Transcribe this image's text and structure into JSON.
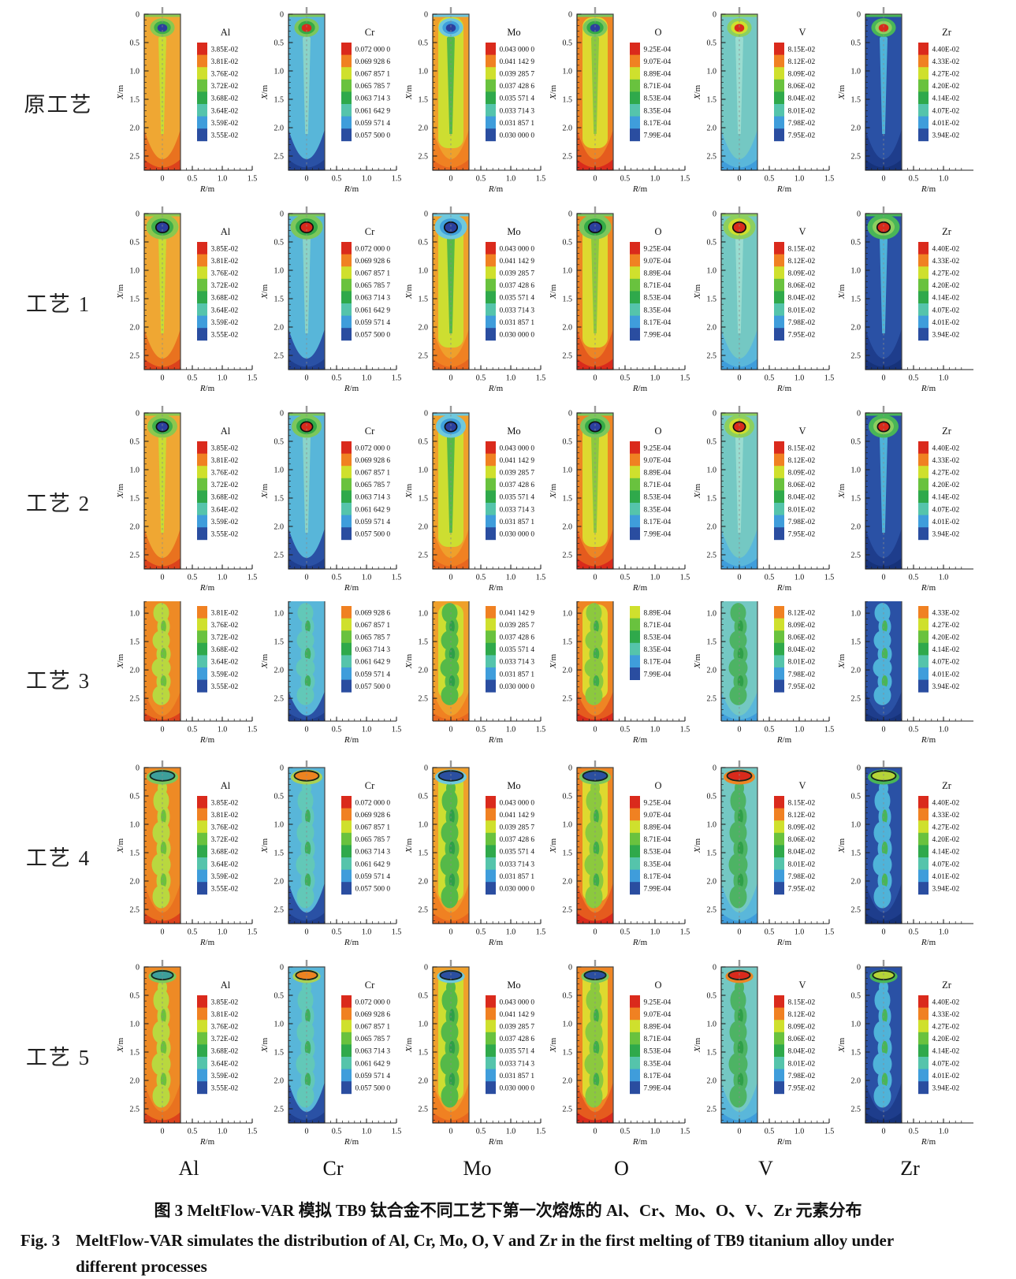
{
  "figure": {
    "caption_zh": "图 3    MeltFlow-VAR 模拟 TB9 钛合金不同工艺下第一次熔炼的 Al、Cr、Mo、O、V、Zr 元素分布",
    "caption_en_label": "Fig. 3",
    "caption_en_lines": [
      "MeltFlow-VAR simulates the distribution of Al, Cr, Mo, O, V and Zr in the first melting of TB9 titanium alloy under",
      "different processes"
    ]
  },
  "axes": {
    "x_label": "R/m",
    "y_label": "X/m",
    "y_tick_labels": [
      "0",
      "0.5",
      "1.0",
      "1.5",
      "2.0",
      "2.5"
    ],
    "y_tick_labels_cropped": [
      "1.0",
      "1.5",
      "2.0",
      "2.5"
    ]
  },
  "rows": [
    {
      "label": "原工艺",
      "variant": "round-small"
    },
    {
      "label": "工艺 1",
      "variant": "round"
    },
    {
      "label": "工艺 2",
      "variant": "round"
    },
    {
      "label": "工艺 3",
      "variant": "cropped"
    },
    {
      "label": "工艺 4",
      "variant": "flat"
    },
    {
      "label": "工艺 5",
      "variant": "flat-small"
    }
  ],
  "columns": [
    {
      "element": "Al",
      "legend": [
        "3.85E-02",
        "3.81E-02",
        "3.76E-02",
        "3.72E-02",
        "3.68E-02",
        "3.64E-02",
        "3.59E-02",
        "3.55E-02"
      ],
      "crop_skip": 1,
      "x_ticks": [
        "0",
        "0.5",
        "1.0",
        "1.5"
      ]
    },
    {
      "element": "Cr",
      "legend": [
        "0.072 000 0",
        "0.069 928 6",
        "0.067 857 1",
        "0.065 785 7",
        "0.063 714 3",
        "0.061 642 9",
        "0.059 571 4",
        "0.057 500 0"
      ],
      "crop_skip": 1,
      "x_ticks": [
        "0",
        "0.5",
        "1.0",
        "1.5"
      ]
    },
    {
      "element": "Mo",
      "legend": [
        "0.043 000 0",
        "0.041 142 9",
        "0.039 285 7",
        "0.037 428 6",
        "0.035 571 4",
        "0.033 714 3",
        "0.031 857 1",
        "0.030 000 0"
      ],
      "crop_skip": 1,
      "x_ticks": [
        "0",
        "0.5",
        "1.0",
        "1.5"
      ]
    },
    {
      "element": "O",
      "legend": [
        "9.25E-04",
        "9.07E-04",
        "8.89E-04",
        "8.71E-04",
        "8.53E-04",
        "8.35E-04",
        "8.17E-04",
        "7.99E-04"
      ],
      "crop_skip": 2,
      "x_ticks": [
        "0",
        "0.5",
        "1.0",
        "1.5"
      ]
    },
    {
      "element": "V",
      "legend": [
        "8.15E-02",
        "8.12E-02",
        "8.09E-02",
        "8.06E-02",
        "8.04E-02",
        "8.01E-02",
        "7.98E-02",
        "7.95E-02"
      ],
      "crop_skip": 1,
      "x_ticks": [
        "0",
        "0.5",
        "1.0",
        "1.5"
      ]
    },
    {
      "element": "Zr",
      "legend": [
        "4.40E-02",
        "4.33E-02",
        "4.27E-02",
        "4.20E-02",
        "4.14E-02",
        "4.07E-02",
        "4.01E-02",
        "3.94E-02"
      ],
      "crop_skip": 1,
      "x_ticks": [
        "0",
        "0.5",
        "1.0"
      ]
    }
  ],
  "legend_colors": [
    "#da2a1c",
    "#f08122",
    "#cfe02d",
    "#69c23e",
    "#2fa94b",
    "#55c4ab",
    "#3f9ddb",
    "#2a4da0"
  ],
  "styles": {
    "Al": {
      "body": "#efa733",
      "bodyFlat": "#ee8a25",
      "bodyInner": null,
      "plumeThin": "#c9dd33",
      "plumeWide": "#b9d83f",
      "plumeDot": "#6cc13d",
      "ring": "#8cc84e",
      "ring2": "#3fae4a",
      "blob": "#2b3f9e",
      "blobFlat": "#3d9f9a",
      "ringFlat": "#7cc75c",
      "bottom": "#e9721f",
      "bottom2": "#dc421c"
    },
    "Cr": {
      "body": "#58b6d9",
      "bodyInner": null,
      "plumeThin": "#8ad3c8",
      "plumeWide": "#62c8b8",
      "plumeDot": "#3fae5c",
      "ring": "#7cc75c",
      "ring2": "#35aa47",
      "blob": "#d92a1c",
      "blobFlat": "#ec8320",
      "ringFlat": "#a9d153",
      "bottom": "#2a51a5",
      "bottom2": "#1f3f8f"
    },
    "Mo": {
      "body": "#efa02b",
      "bodyInner": "#cdde31",
      "plumeThin": "#55b948",
      "plumeWide": "#55b948",
      "plumeDot": "#2f9f49",
      "ring": "#6ec8dd",
      "ring2": "#3f9fdb",
      "blob": "#2b3f9e",
      "blobFlat": "#2b4fa0",
      "ringFlat": "#6ec8dd",
      "bottom": "#f08122",
      "bottom2": "#e8671f"
    },
    "O": {
      "body": "#ee8524",
      "bodyInner": "#ded92f",
      "plumeThin": "#8cc93e",
      "plumeWide": "#8cc93e",
      "plumeDot": "#3fae4a",
      "ring": "#7cc75c",
      "ring2": "#35aa47",
      "blob": "#2b3f9e",
      "blobFlat": "#2b4fa0",
      "ringFlat": "#7cc75c",
      "bottom": "#e55b1e",
      "bottom2": "#d92a1c"
    },
    "V": {
      "body": "#74c8c3",
      "bodyInner": null,
      "plumeThin": "#9adcd0",
      "plumeWide": "#4db364",
      "plumeDot": "#2f9f49",
      "ring": "#8ccf5f",
      "ring2": "#cfe02d",
      "blob": "#d92a1c",
      "blobFlat": "#d92a1c",
      "ringFlat": "#ee8524",
      "bottom": "#5ab7da",
      "bottom2": "#3f9ddb"
    },
    "Zr": {
      "body": "#2a51a5",
      "bodyInner": null,
      "plumeThin": "#4fb3d9",
      "plumeWide": "#4fb3d9",
      "plumeDot": "#49b657",
      "ring": "#49b657",
      "ring2": "#8ccf5f",
      "blob": "#d92a1c",
      "blobFlat": "#b5d438",
      "ringFlat": "#49b657",
      "bottom": "#1e3d8c",
      "bottom2": "#16327a"
    }
  },
  "chart_data": [
    {
      "type": "heatmap",
      "element": "Al",
      "title": "Al",
      "xlabel": "R/m",
      "ylabel": "X/m",
      "x_ticks": [
        0,
        0.5,
        1.0,
        1.5
      ],
      "y_ticks": [
        0,
        0.5,
        1.0,
        1.5,
        2.0,
        2.5
      ],
      "legend_levels": [
        "3.85E-02",
        "3.81E-02",
        "3.76E-02",
        "3.72E-02",
        "3.68E-02",
        "3.64E-02",
        "3.59E-02",
        "3.55E-02"
      ],
      "processes": [
        "原工艺",
        "工艺 1",
        "工艺 2",
        "工艺 3",
        "工艺 4",
        "工艺 5"
      ]
    },
    {
      "type": "heatmap",
      "element": "Cr",
      "title": "Cr",
      "xlabel": "R/m",
      "ylabel": "X/m",
      "x_ticks": [
        0,
        0.5,
        1.0,
        1.5
      ],
      "y_ticks": [
        0,
        0.5,
        1.0,
        1.5,
        2.0,
        2.5
      ],
      "legend_levels": [
        "0.072 000 0",
        "0.069 928 6",
        "0.067 857 1",
        "0.065 785 7",
        "0.063 714 3",
        "0.061 642 9",
        "0.059 571 4",
        "0.057 500 0"
      ],
      "processes": [
        "原工艺",
        "工艺 1",
        "工艺 2",
        "工艺 3",
        "工艺 4",
        "工艺 5"
      ]
    },
    {
      "type": "heatmap",
      "element": "Mo",
      "title": "Mo",
      "xlabel": "R/m",
      "ylabel": "X/m",
      "x_ticks": [
        0,
        0.5,
        1.0,
        1.5
      ],
      "y_ticks": [
        0,
        0.5,
        1.0,
        1.5,
        2.0,
        2.5
      ],
      "legend_levels": [
        "0.043 000 0",
        "0.041 142 9",
        "0.039 285 7",
        "0.037 428 6",
        "0.035 571 4",
        "0.033 714 3",
        "0.031 857 1",
        "0.030 000 0"
      ],
      "processes": [
        "原工艺",
        "工艺 1",
        "工艺 2",
        "工艺 3",
        "工艺 4",
        "工艺 5"
      ]
    },
    {
      "type": "heatmap",
      "element": "O",
      "title": "O",
      "xlabel": "R/m",
      "ylabel": "X/m",
      "x_ticks": [
        0,
        0.5,
        1.0,
        1.5
      ],
      "y_ticks": [
        0,
        0.5,
        1.0,
        1.5,
        2.0,
        2.5
      ],
      "legend_levels": [
        "9.25E-04",
        "9.07E-04",
        "8.89E-04",
        "8.71E-04",
        "8.53E-04",
        "8.35E-04",
        "8.17E-04",
        "7.99E-04"
      ],
      "processes": [
        "原工艺",
        "工艺 1",
        "工艺 2",
        "工艺 3",
        "工艺 4",
        "工艺 5"
      ]
    },
    {
      "type": "heatmap",
      "element": "V",
      "title": "V",
      "xlabel": "R/m",
      "ylabel": "X/m",
      "x_ticks": [
        0,
        0.5,
        1.0,
        1.5
      ],
      "y_ticks": [
        0,
        0.5,
        1.0,
        1.5,
        2.0,
        2.5
      ],
      "legend_levels": [
        "8.15E-02",
        "8.12E-02",
        "8.09E-02",
        "8.06E-02",
        "8.04E-02",
        "8.01E-02",
        "7.98E-02",
        "7.95E-02"
      ],
      "processes": [
        "原工艺",
        "工艺 1",
        "工艺 2",
        "工艺 3",
        "工艺 4",
        "工艺 5"
      ]
    },
    {
      "type": "heatmap",
      "element": "Zr",
      "title": "Zr",
      "xlabel": "R/m",
      "ylabel": "X/m",
      "x_ticks": [
        0,
        0.5,
        1.0
      ],
      "y_ticks": [
        0,
        0.5,
        1.0,
        1.5,
        2.0,
        2.5
      ],
      "legend_levels": [
        "4.40E-02",
        "4.33E-02",
        "4.27E-02",
        "4.20E-02",
        "4.14E-02",
        "4.07E-02",
        "4.01E-02",
        "3.94E-02"
      ],
      "processes": [
        "原工艺",
        "工艺 1",
        "工艺 2",
        "工艺 3",
        "工艺 4",
        "工艺 5"
      ]
    }
  ]
}
